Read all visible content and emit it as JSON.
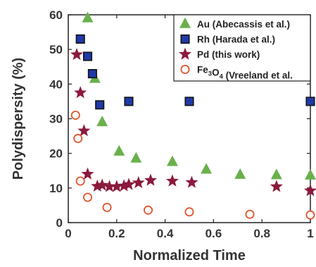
{
  "chart_data": {
    "type": "scatter",
    "xlabel": "Normalized Time",
    "ylabel": "Polydispersity (%)",
    "xlim": [
      0,
      1
    ],
    "ylim": [
      0,
      60
    ],
    "xticks": [
      0,
      0.2,
      0.4,
      0.6,
      0.8,
      1
    ],
    "xtick_labels": [
      "0",
      "0.2",
      "0.4",
      "0.6",
      "0.8",
      "1"
    ],
    "yticks": [
      0,
      10,
      20,
      30,
      40,
      50,
      60
    ],
    "ytick_labels": [
      "0",
      "10",
      "20",
      "30",
      "40",
      "50",
      "60"
    ],
    "grid": false,
    "legend_position": "top-right",
    "series": [
      {
        "name": "Au (Abecassis et al.)",
        "marker": "triangle",
        "color": "#6ab04c",
        "points": [
          [
            0.08,
            59
          ],
          [
            0.11,
            41.5
          ],
          [
            0.14,
            29
          ],
          [
            0.21,
            20.5
          ],
          [
            0.28,
            18.5
          ],
          [
            0.43,
            17.5
          ],
          [
            0.57,
            15.3
          ],
          [
            0.71,
            13.8
          ],
          [
            0.86,
            13.7
          ],
          [
            1.0,
            13.6
          ]
        ]
      },
      {
        "name": "Rh (Harada et al.)",
        "marker": "square",
        "color": "#1f3aa8",
        "points": [
          [
            0.05,
            53
          ],
          [
            0.08,
            48
          ],
          [
            0.1,
            43
          ],
          [
            0.13,
            34
          ],
          [
            0.25,
            35
          ],
          [
            0.5,
            35
          ],
          [
            1.0,
            35
          ]
        ]
      },
      {
        "name": "Pd (this work)",
        "marker": "star",
        "color": "#8b1a3c",
        "points": [
          [
            0.035,
            48.5
          ],
          [
            0.05,
            37.5
          ],
          [
            0.065,
            26.5
          ],
          [
            0.08,
            14
          ],
          [
            0.12,
            10.5
          ],
          [
            0.14,
            10.8
          ],
          [
            0.17,
            10.4
          ],
          [
            0.2,
            10.4
          ],
          [
            0.23,
            10.6
          ],
          [
            0.25,
            11
          ],
          [
            0.29,
            11.5
          ],
          [
            0.34,
            12.2
          ],
          [
            0.43,
            12
          ],
          [
            0.51,
            11.6
          ],
          [
            0.86,
            10.4
          ],
          [
            1.0,
            9.2
          ]
        ]
      },
      {
        "name": "Fe3O4 (Vreeland et al.)",
        "name_display": {
          "main": "Fe",
          "sub1": "3",
          "mid": "O",
          "sub2": "4",
          "rest": " (Vreeland et al."
        },
        "marker": "circle-open",
        "color": "#e0532c",
        "points": [
          [
            0.03,
            31
          ],
          [
            0.04,
            24.3
          ],
          [
            0.05,
            12
          ],
          [
            0.08,
            7.3
          ],
          [
            0.16,
            4.4
          ],
          [
            0.33,
            3.6
          ],
          [
            0.5,
            3.1
          ],
          [
            0.75,
            2.4
          ],
          [
            1.0,
            2.2
          ]
        ]
      }
    ]
  }
}
